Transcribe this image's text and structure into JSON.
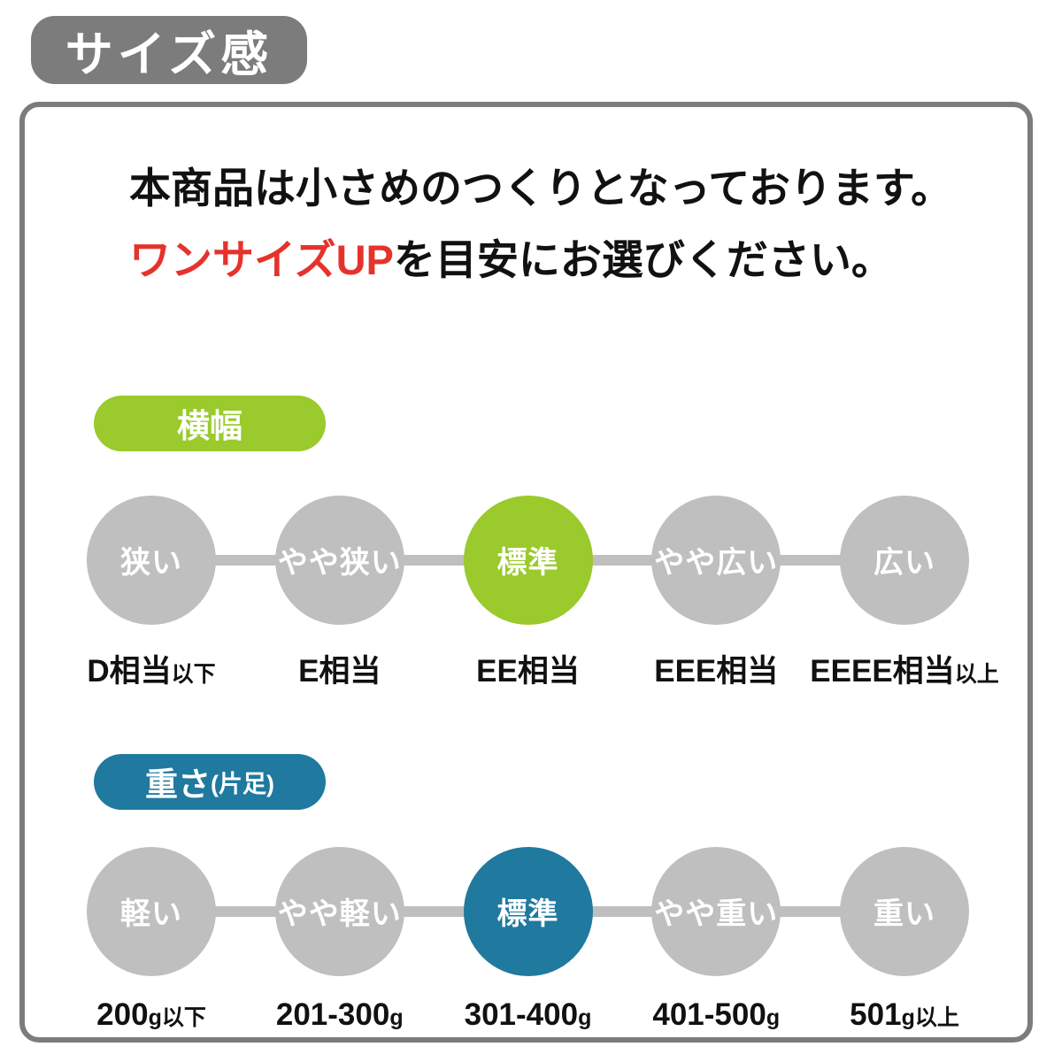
{
  "page": {
    "title_badge": "サイズ感"
  },
  "intro": {
    "line1": "本商品は小さめのつくりとなっております。",
    "line2_highlight": "ワンサイズUP",
    "line2_rest": "を目安にお選びください。"
  },
  "colors": {
    "gray_dark": "#7c7c7c",
    "gray_circle": "#bfbfbf",
    "green": "#9aca2b",
    "teal": "#20799f",
    "red": "#e5332c"
  },
  "scales": [
    {
      "name": "width",
      "pill": {
        "label": "横幅",
        "suffix": ""
      },
      "items": [
        {
          "circle": "狭い",
          "active": false,
          "label_main": "D相当",
          "label_suffix": "以下"
        },
        {
          "circle": "やや狭い",
          "active": false,
          "label_main": "E相当",
          "label_suffix": ""
        },
        {
          "circle": "標準",
          "active": true,
          "label_main": "EE相当",
          "label_suffix": ""
        },
        {
          "circle": "やや広い",
          "active": false,
          "label_main": "EEE相当",
          "label_suffix": ""
        },
        {
          "circle": "広い",
          "active": false,
          "label_main": "EEEE相当",
          "label_suffix": "以上"
        }
      ]
    },
    {
      "name": "weight",
      "pill": {
        "label": "重さ",
        "suffix": "(片足)"
      },
      "items": [
        {
          "circle": "軽い",
          "active": false,
          "label_main": "200",
          "label_suffix": "g以下"
        },
        {
          "circle": "やや軽い",
          "active": false,
          "label_main": "201-300",
          "label_suffix": "g"
        },
        {
          "circle": "標準",
          "active": true,
          "label_main": "301-400",
          "label_suffix": "g"
        },
        {
          "circle": "やや重い",
          "active": false,
          "label_main": "401-500",
          "label_suffix": "g"
        },
        {
          "circle": "重い",
          "active": false,
          "label_main": "501",
          "label_suffix": "g以上"
        }
      ]
    }
  ]
}
